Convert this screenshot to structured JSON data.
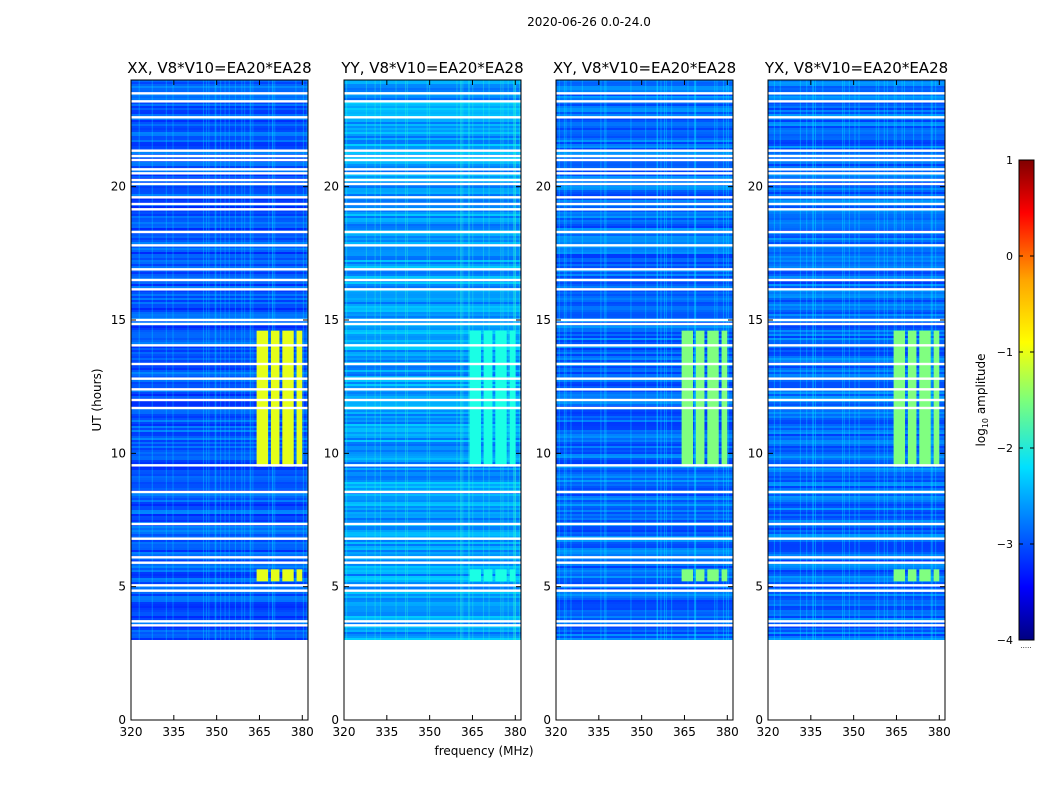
{
  "chart_data": {
    "type": "heatmap",
    "suptitle": "2020-06-26 0.0-24.0",
    "xlabel": "frequency (MHz)",
    "ylabel": "UT (hours)",
    "x_range_mhz": [
      320,
      382
    ],
    "y_range_hours": [
      0,
      24
    ],
    "x_ticks": [
      "320",
      "335",
      "350",
      "365",
      "380"
    ],
    "y_ticks": [
      "0",
      "5",
      "10",
      "15",
      "20"
    ],
    "data_start_hour": 3.0,
    "panels": [
      {
        "title": "XX, V8*V10=EA20*EA28",
        "polarization": "XX",
        "band_level": -1.0,
        "base_level": -2.95
      },
      {
        "title": "YY, V8*V10=EA20*EA28",
        "polarization": "YY",
        "band_level": -2.0,
        "base_level": -2.6
      },
      {
        "title": "XY, V8*V10=EA20*EA28",
        "polarization": "XY",
        "band_level": -1.5,
        "base_level": -2.85
      },
      {
        "title": "YX, V8*V10=EA20*EA28",
        "polarization": "YX",
        "band_level": -1.5,
        "base_level": -2.85
      }
    ],
    "bright_bands_mhz": [
      [
        364,
        368
      ],
      [
        369,
        372
      ],
      [
        373,
        377
      ],
      [
        378,
        380
      ]
    ],
    "bright_time_windows_hours": [
      [
        9.5,
        14.6
      ],
      [
        5.2,
        5.65
      ]
    ],
    "flagged_hours": [
      3.55,
      3.7,
      4.85,
      5.05,
      5.9,
      6.1,
      6.8,
      7.35,
      8.55,
      9.55,
      11.7,
      12.0,
      12.4,
      12.8,
      13.35,
      14.05,
      14.85,
      15.0,
      16.15,
      16.5,
      16.9,
      17.8,
      18.3,
      19.15,
      19.35,
      19.6,
      20.1,
      20.25,
      20.5,
      20.65,
      21.0,
      21.15,
      21.35,
      22.6,
      23.2,
      23.5
    ],
    "colorbar": {
      "label": "log10 amplitude",
      "label_main": "log",
      "label_sub": "10",
      "label_rest": " amplitude",
      "ticks": [
        "1",
        "0",
        "−1",
        "−2",
        "−3",
        "−4"
      ],
      "range": [
        -4,
        1
      ],
      "colormap": "jet",
      "footer_note": "....."
    }
  }
}
